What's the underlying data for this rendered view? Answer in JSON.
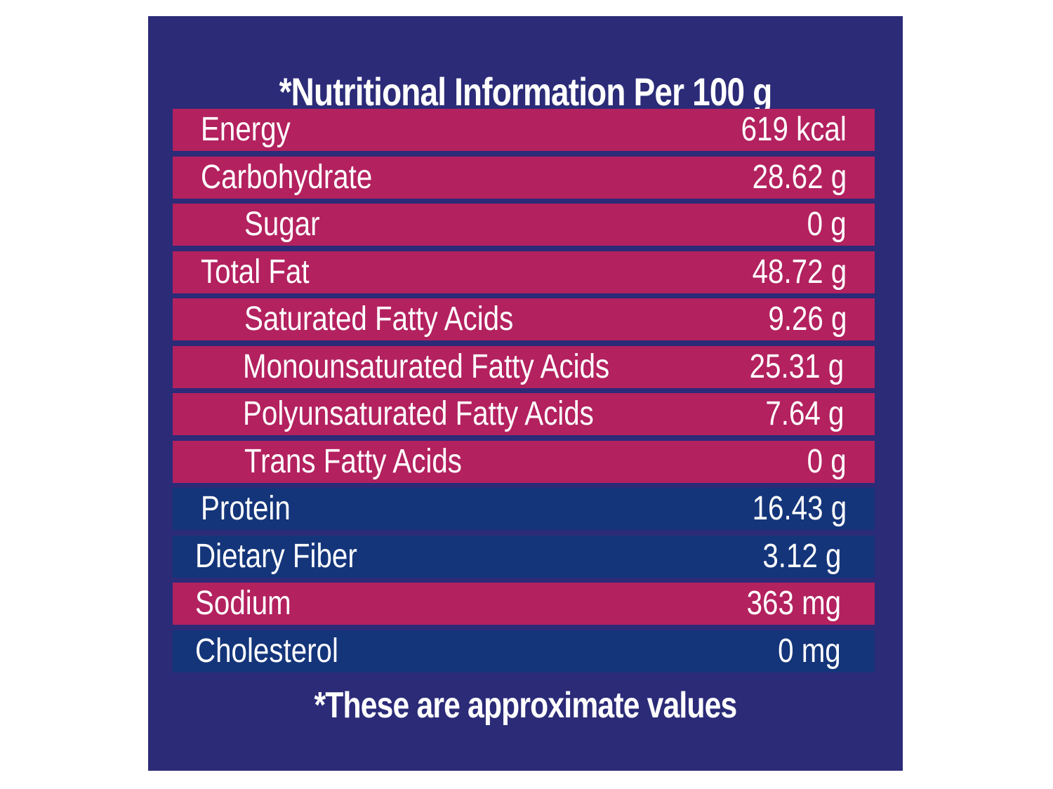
{
  "title": "*Nutritional Information Per 100 g",
  "rows": [
    {
      "label": "Energy",
      "value": "619 kcal",
      "color": "pink"
    },
    {
      "label": "Carbohydrate",
      "value": "28.62 g",
      "color": "pink"
    },
    {
      "label": "Sugar",
      "value": "0 g",
      "color": "pink"
    },
    {
      "label": "Total Fat",
      "value": "48.72 g",
      "color": "pink"
    },
    {
      "label": "Saturated Fatty Acids",
      "value": "9.26 g",
      "color": "pink"
    },
    {
      "label": "Monounsaturated Fatty Acids",
      "value": "25.31 g",
      "color": "pink"
    },
    {
      "label": "Polyunsaturated Fatty Acids",
      "value": "7.64 g",
      "color": "pink"
    },
    {
      "label": "Trans Fatty Acids",
      "value": "0 g",
      "color": "pink"
    },
    {
      "label": "Protein",
      "value": "16.43 g",
      "color": "blue"
    },
    {
      "label": "Dietary Fiber",
      "value": "3.12 g",
      "color": "blue"
    },
    {
      "label": "Sodium",
      "value": "363 mg",
      "color": "pink"
    },
    {
      "label": "Cholesterol",
      "value": "0 mg",
      "color": "blue"
    }
  ],
  "footer": "*These are approximate values",
  "colors": {
    "panel": "#2b2b78",
    "pink_row": "#b3215f",
    "blue_row": "#14357a",
    "text": "#ffffff"
  }
}
